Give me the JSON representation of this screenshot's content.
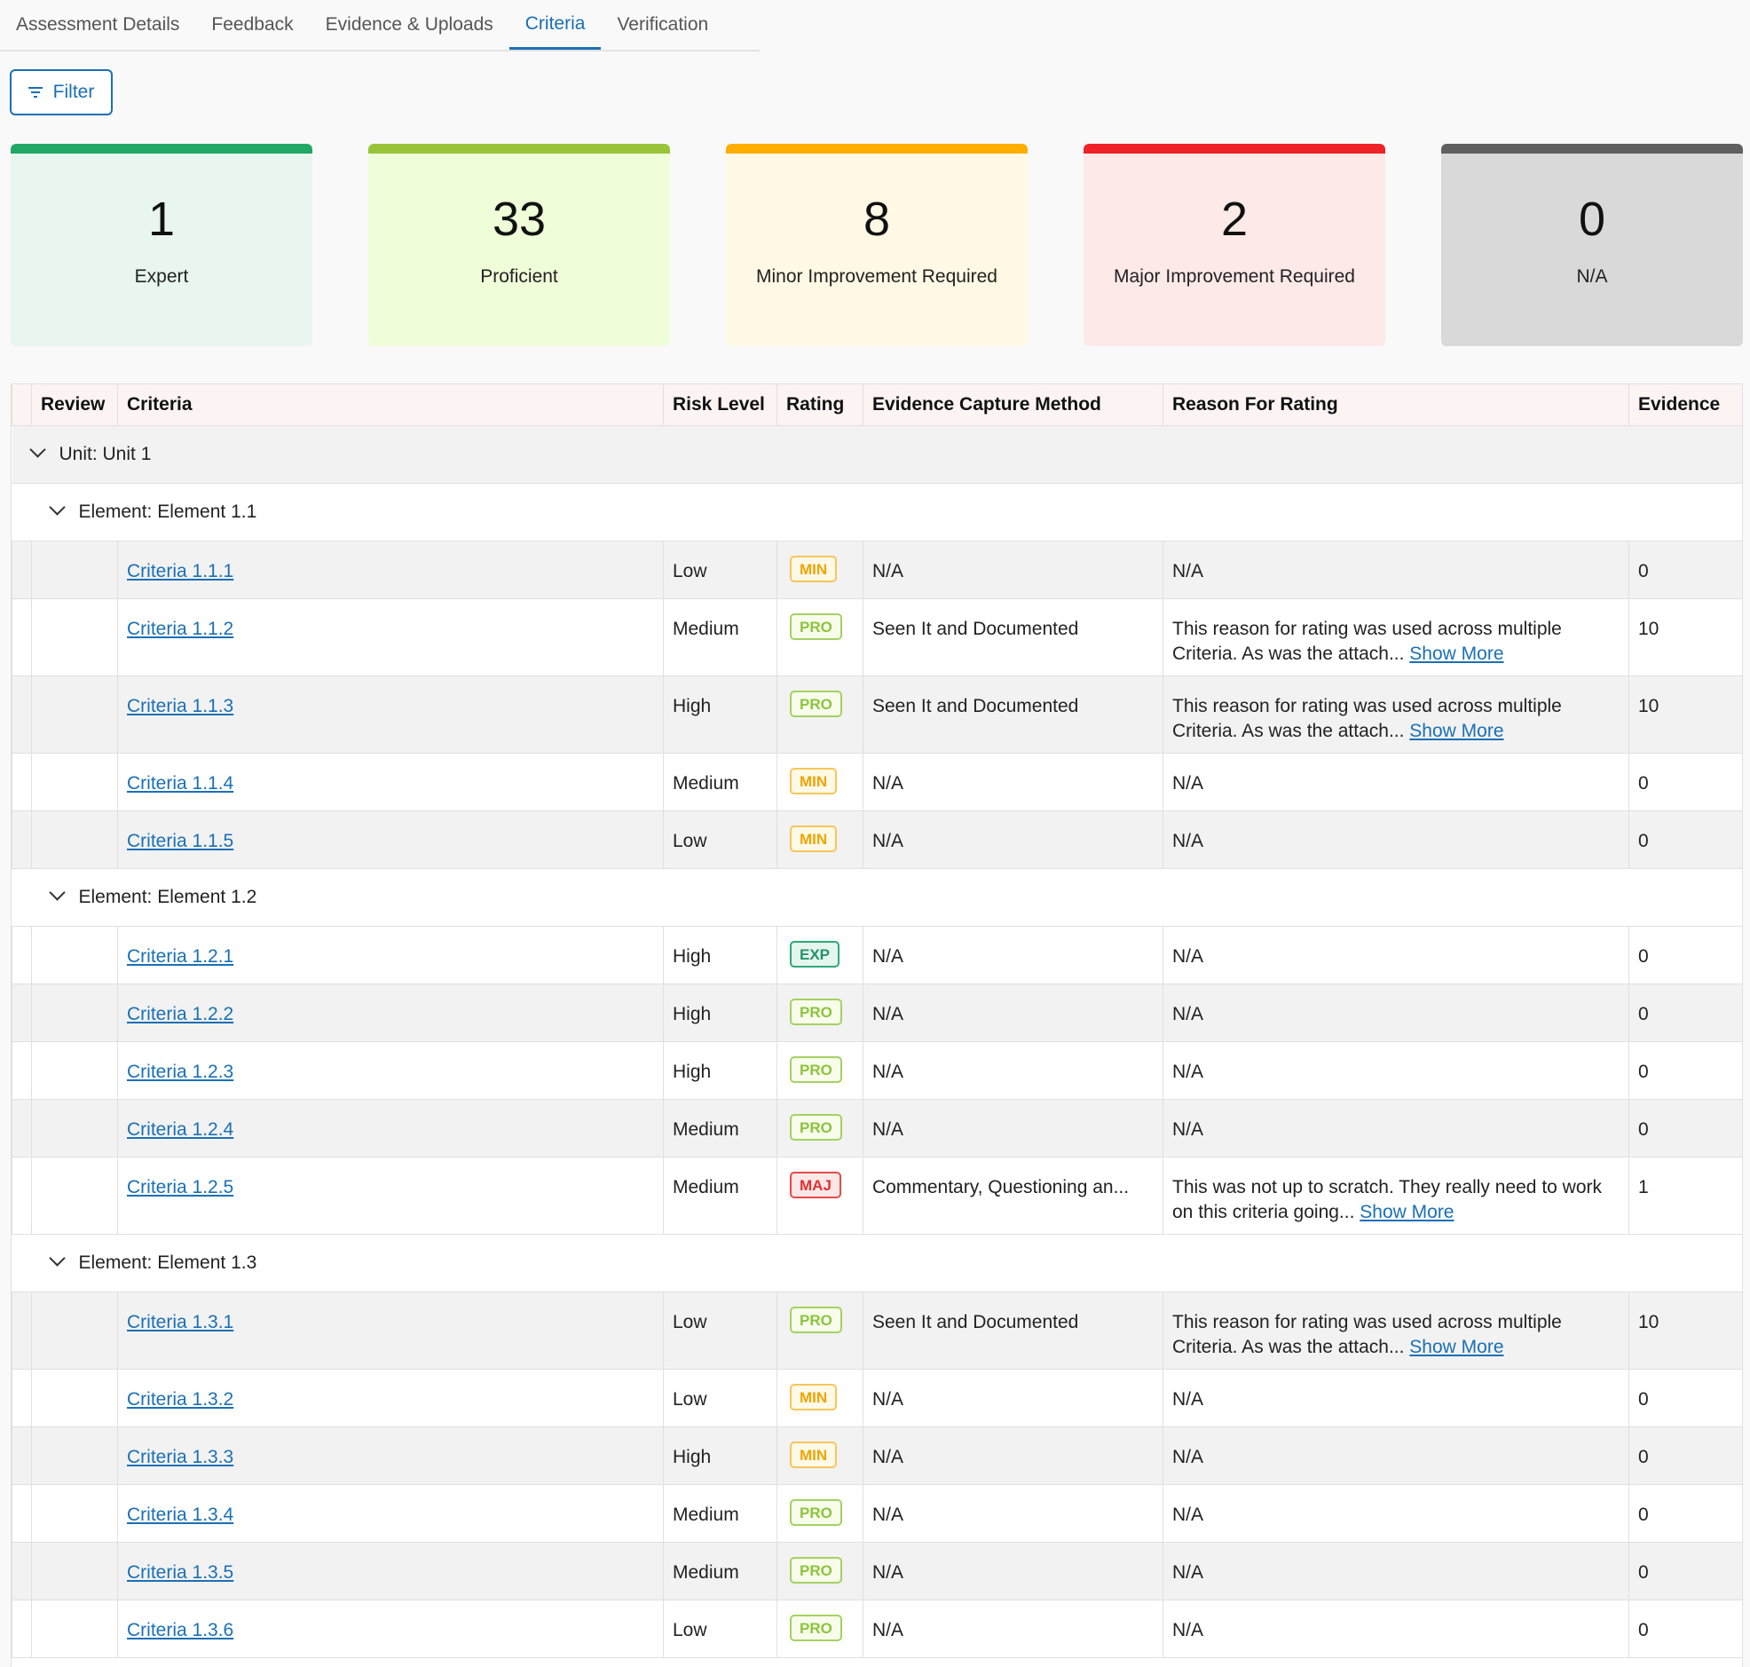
{
  "tabs": [
    {
      "label": "Assessment Details",
      "active": false
    },
    {
      "label": "Feedback",
      "active": false
    },
    {
      "label": "Evidence & Uploads",
      "active": false
    },
    {
      "label": "Criteria",
      "active": true
    },
    {
      "label": "Verification",
      "active": false
    }
  ],
  "filter": {
    "label": "Filter",
    "icon": "filter-icon"
  },
  "summary_cards": [
    {
      "count": "1",
      "label": "Expert",
      "accent": "#22a866",
      "bg": "#e9f6ef"
    },
    {
      "count": "33",
      "label": "Proficient",
      "accent": "#99c43a",
      "bg": "#effed9"
    },
    {
      "count": "8",
      "label": "Minor Improvement Required",
      "accent": "#ffae00",
      "bg": "#fff8e4"
    },
    {
      "count": "2",
      "label": "Major Improvement Required",
      "accent": "#ee2228",
      "bg": "#fde9e8"
    },
    {
      "count": "0",
      "label": "N/A",
      "accent": "#606060",
      "bg": "#d9d9d9"
    }
  ],
  "table": {
    "headers": {
      "review": "Review",
      "criteria": "Criteria",
      "risk": "Risk Level",
      "rating": "Rating",
      "method": "Evidence Capture Method",
      "reason": "Reason For Rating",
      "evidence": "Evidence"
    },
    "show_more_label": "Show More",
    "unit": {
      "label": "Unit: Unit 1"
    },
    "elements": [
      {
        "label": "Element: Element 1.1",
        "rows": [
          {
            "criteria": "Criteria 1.1.1",
            "risk": "Low",
            "rating": "MIN",
            "method": "N/A",
            "reason": "N/A",
            "show_more": false,
            "evidence": "0"
          },
          {
            "criteria": "Criteria 1.1.2",
            "risk": "Medium",
            "rating": "PRO",
            "method": "Seen It and Documented",
            "reason": "This reason for rating was used across multiple Criteria. As was the attach...",
            "show_more": true,
            "evidence": "10"
          },
          {
            "criteria": "Criteria 1.1.3",
            "risk": "High",
            "rating": "PRO",
            "method": "Seen It and Documented",
            "reason": "This reason for rating was used across multiple Criteria. As was the attach...",
            "show_more": true,
            "evidence": "10"
          },
          {
            "criteria": "Criteria 1.1.4",
            "risk": "Medium",
            "rating": "MIN",
            "method": "N/A",
            "reason": "N/A",
            "show_more": false,
            "evidence": "0"
          },
          {
            "criteria": "Criteria 1.1.5",
            "risk": "Low",
            "rating": "MIN",
            "method": "N/A",
            "reason": "N/A",
            "show_more": false,
            "evidence": "0"
          }
        ]
      },
      {
        "label": "Element: Element 1.2",
        "rows": [
          {
            "criteria": "Criteria 1.2.1",
            "risk": "High",
            "rating": "EXP",
            "method": "N/A",
            "reason": "N/A",
            "show_more": false,
            "evidence": "0"
          },
          {
            "criteria": "Criteria 1.2.2",
            "risk": "High",
            "rating": "PRO",
            "method": "N/A",
            "reason": "N/A",
            "show_more": false,
            "evidence": "0"
          },
          {
            "criteria": "Criteria 1.2.3",
            "risk": "High",
            "rating": "PRO",
            "method": "N/A",
            "reason": "N/A",
            "show_more": false,
            "evidence": "0"
          },
          {
            "criteria": "Criteria 1.2.4",
            "risk": "Medium",
            "rating": "PRO",
            "method": "N/A",
            "reason": "N/A",
            "show_more": false,
            "evidence": "0"
          },
          {
            "criteria": "Criteria 1.2.5",
            "risk": "Medium",
            "rating": "MAJ",
            "method": "Commentary, Questioning an...",
            "reason": "This was not up to scratch. They really need to work on this criteria going...",
            "show_more": true,
            "evidence": "1"
          }
        ]
      },
      {
        "label": "Element: Element 1.3",
        "rows": [
          {
            "criteria": "Criteria 1.3.1",
            "risk": "Low",
            "rating": "PRO",
            "method": "Seen It and Documented",
            "reason": "This reason for rating was used across multiple Criteria. As was the attach...",
            "show_more": true,
            "evidence": "10"
          },
          {
            "criteria": "Criteria 1.3.2",
            "risk": "Low",
            "rating": "MIN",
            "method": "N/A",
            "reason": "N/A",
            "show_more": false,
            "evidence": "0"
          },
          {
            "criteria": "Criteria 1.3.3",
            "risk": "High",
            "rating": "MIN",
            "method": "N/A",
            "reason": "N/A",
            "show_more": false,
            "evidence": "0"
          },
          {
            "criteria": "Criteria 1.3.4",
            "risk": "Medium",
            "rating": "PRO",
            "method": "N/A",
            "reason": "N/A",
            "show_more": false,
            "evidence": "0"
          },
          {
            "criteria": "Criteria 1.3.5",
            "risk": "Medium",
            "rating": "PRO",
            "method": "N/A",
            "reason": "N/A",
            "show_more": false,
            "evidence": "0"
          },
          {
            "criteria": "Criteria 1.3.6",
            "risk": "Low",
            "rating": "PRO",
            "method": "N/A",
            "reason": "N/A",
            "show_more": false,
            "evidence": "0"
          }
        ]
      }
    ]
  }
}
